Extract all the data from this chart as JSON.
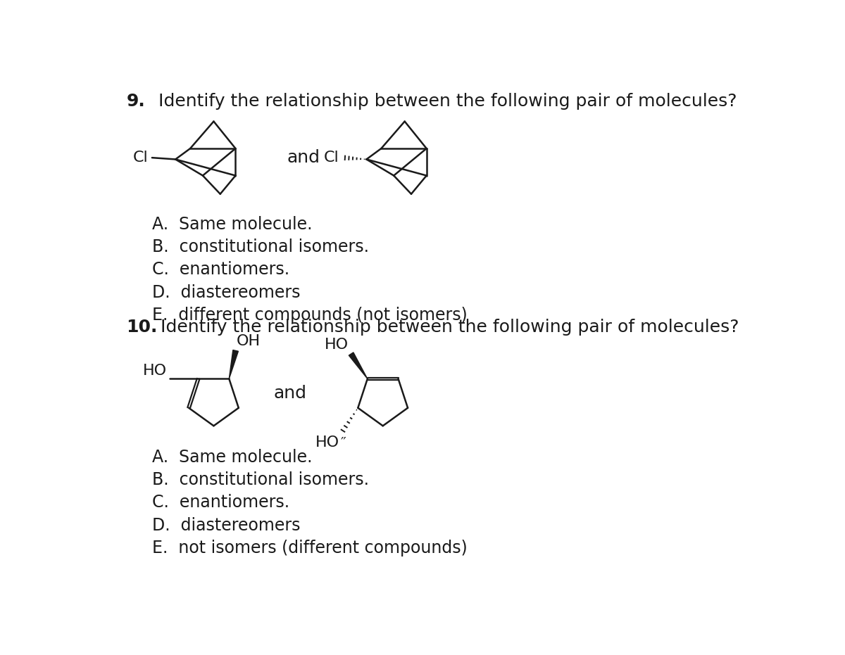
{
  "background_color": "#ffffff",
  "q9_number": "9.",
  "q9_text": "  Identify the relationship between the following pair of molecules?",
  "q10_number": "10.",
  "q10_text": " Identify the relationship between the following pair of molecules?",
  "q9_options": [
    "A.  Same molecule.",
    "B.  constitutional isomers.",
    "C.  enantiomers.",
    "D.  diastereomers",
    "E.  different compounds (not isomers)"
  ],
  "q10_options": [
    "A.  Same molecule.",
    "B.  constitutional isomers.",
    "C.  enantiomers.",
    "D.  diastereomers",
    "E.  not isomers (different compounds)"
  ],
  "title_fontsize": 18,
  "option_fontsize": 17,
  "label_fontsize": 16,
  "text_color": "#1a1a1a"
}
